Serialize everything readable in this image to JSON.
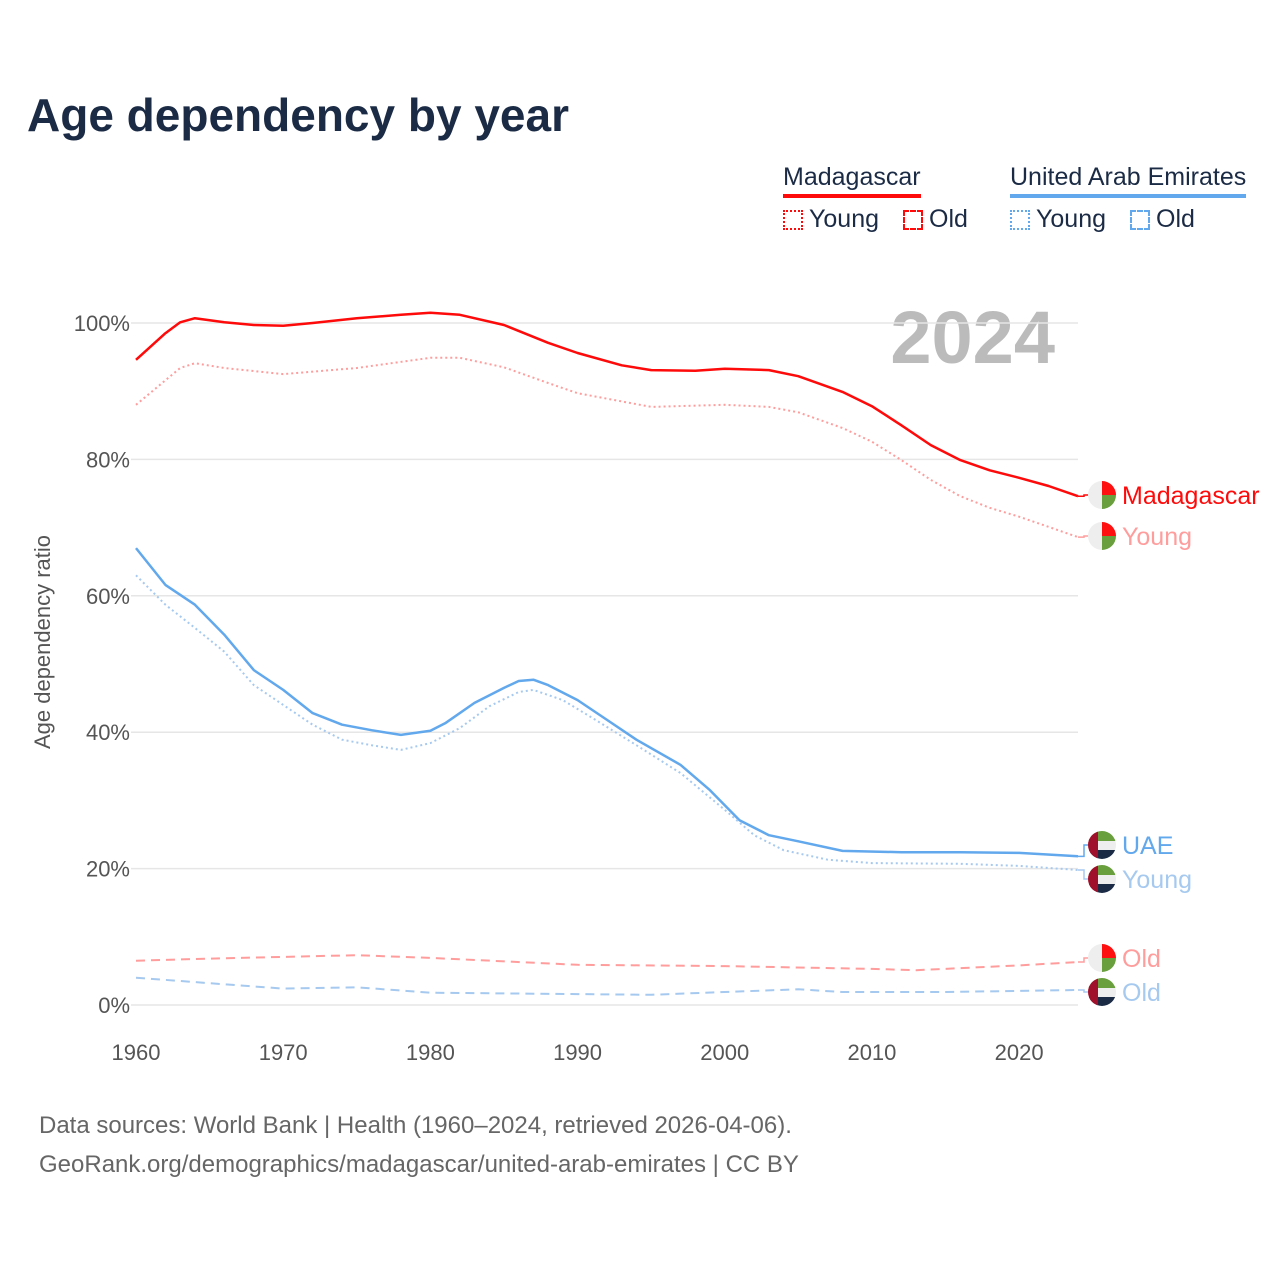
{
  "title": "Age dependency by year",
  "year_label": "2024",
  "legend": {
    "countries": [
      {
        "name": "Madagascar",
        "color": "#ff0a0a",
        "young": "Young",
        "old": "Old"
      },
      {
        "name": "United Arab Emirates",
        "color": "#62a8ec",
        "young": "Young",
        "old": "Old"
      }
    ]
  },
  "footer": {
    "line1": "Data sources: World Bank | Health (1960–2024, retrieved 2026-04-06).",
    "line2": "GeoRank.org/demographics/madagascar/united-arab-emirates | CC BY"
  },
  "chart_data": {
    "type": "line",
    "title": "Age dependency by year",
    "xlabel": "",
    "ylabel": "Age dependency ratio",
    "xlim": [
      1960,
      2024
    ],
    "ylim": [
      0,
      100
    ],
    "xticks": [
      "1960",
      "1970",
      "1980",
      "1990",
      "2000",
      "2010",
      "2020"
    ],
    "yticks": [
      "0%",
      "20%",
      "40%",
      "60%",
      "80%",
      "100%"
    ],
    "grid": true,
    "series": [
      {
        "name": "Madagascar",
        "label": "Madagascar",
        "color": "#ff0a0a",
        "style": "solid",
        "x": [
          1960,
          1962,
          1963,
          1964,
          1966,
          1968,
          1970,
          1972,
          1975,
          1978,
          1980,
          1982,
          1985,
          1988,
          1990,
          1993,
          1995,
          1998,
          2000,
          2003,
          2005,
          2008,
          2010,
          2012,
          2014,
          2016,
          2018,
          2020,
          2022,
          2024
        ],
        "y": [
          94.6,
          98.5,
          100.1,
          100.7,
          100.1,
          99.7,
          99.6,
          100.0,
          100.7,
          101.2,
          101.5,
          101.2,
          99.7,
          97.1,
          95.6,
          93.8,
          93.1,
          93.0,
          93.3,
          93.1,
          92.2,
          89.9,
          87.8,
          85.0,
          82.1,
          79.9,
          78.4,
          77.3,
          76.1,
          74.6
        ]
      },
      {
        "name": "Madagascar Young",
        "label": "Young",
        "color": "#ff9d9d",
        "style": "dotted",
        "x": [
          1960,
          1962,
          1963,
          1964,
          1966,
          1970,
          1975,
          1980,
          1982,
          1985,
          1988,
          1990,
          1995,
          2000,
          2003,
          2005,
          2008,
          2010,
          2012,
          2014,
          2016,
          2018,
          2020,
          2022,
          2024
        ],
        "y": [
          88.0,
          91.6,
          93.4,
          94.1,
          93.4,
          92.5,
          93.4,
          94.9,
          94.9,
          93.5,
          91.2,
          89.7,
          87.7,
          88.0,
          87.7,
          86.9,
          84.6,
          82.6,
          79.9,
          77.0,
          74.6,
          72.9,
          71.6,
          70.1,
          68.6
        ]
      },
      {
        "name": "Madagascar Old",
        "label": "Old",
        "color": "#ff9d9d",
        "style": "dashed",
        "x": [
          1960,
          1965,
          1975,
          1980,
          1990,
          2000,
          2010,
          2013,
          2020,
          2024
        ],
        "y": [
          6.5,
          6.8,
          7.3,
          6.9,
          5.9,
          5.7,
          5.3,
          5.1,
          5.8,
          6.3
        ]
      },
      {
        "name": "United Arab Emirates",
        "label": "UAE",
        "color": "#62a8ec",
        "style": "solid",
        "x": [
          1960,
          1962,
          1964,
          1966,
          1968,
          1970,
          1972,
          1974,
          1976,
          1978,
          1980,
          1981,
          1983,
          1985,
          1986,
          1987,
          1988,
          1990,
          1992,
          1994,
          1997,
          1999,
          2001,
          2003,
          2005,
          2008,
          2012,
          2016,
          2020,
          2024
        ],
        "y": [
          67.0,
          61.6,
          58.7,
          54.3,
          49.1,
          46.2,
          42.8,
          41.1,
          40.3,
          39.6,
          40.2,
          41.3,
          44.3,
          46.5,
          47.5,
          47.7,
          46.9,
          44.7,
          41.8,
          38.9,
          35.2,
          31.5,
          27.1,
          24.9,
          24.0,
          22.6,
          22.4,
          22.4,
          22.3,
          21.8
        ]
      },
      {
        "name": "United Arab Emirates Young",
        "label": "Young",
        "color": "#a6c9ef",
        "style": "dotted",
        "x": [
          1960,
          1962,
          1964,
          1966,
          1968,
          1970,
          1972,
          1974,
          1976,
          1978,
          1980,
          1982,
          1984,
          1986,
          1987,
          1989,
          1991,
          1994,
          1997,
          2000,
          2002,
          2004,
          2007,
          2010,
          2016,
          2020,
          2024
        ],
        "y": [
          63.0,
          58.7,
          55.3,
          51.8,
          46.9,
          44.0,
          41.1,
          38.9,
          38.1,
          37.4,
          38.4,
          40.6,
          43.8,
          45.9,
          46.2,
          44.7,
          42.1,
          38.1,
          34.0,
          28.6,
          24.9,
          22.7,
          21.3,
          20.8,
          20.7,
          20.4,
          19.8
        ]
      },
      {
        "name": "United Arab Emirates Old",
        "label": "Old",
        "color": "#a6c9ef",
        "style": "dashed",
        "x": [
          1960,
          1965,
          1970,
          1975,
          1980,
          1990,
          1995,
          2000,
          2005,
          2008,
          2015,
          2024
        ],
        "y": [
          4.0,
          3.2,
          2.4,
          2.6,
          1.8,
          1.6,
          1.5,
          1.9,
          2.3,
          1.9,
          1.9,
          2.2
        ]
      }
    ]
  }
}
